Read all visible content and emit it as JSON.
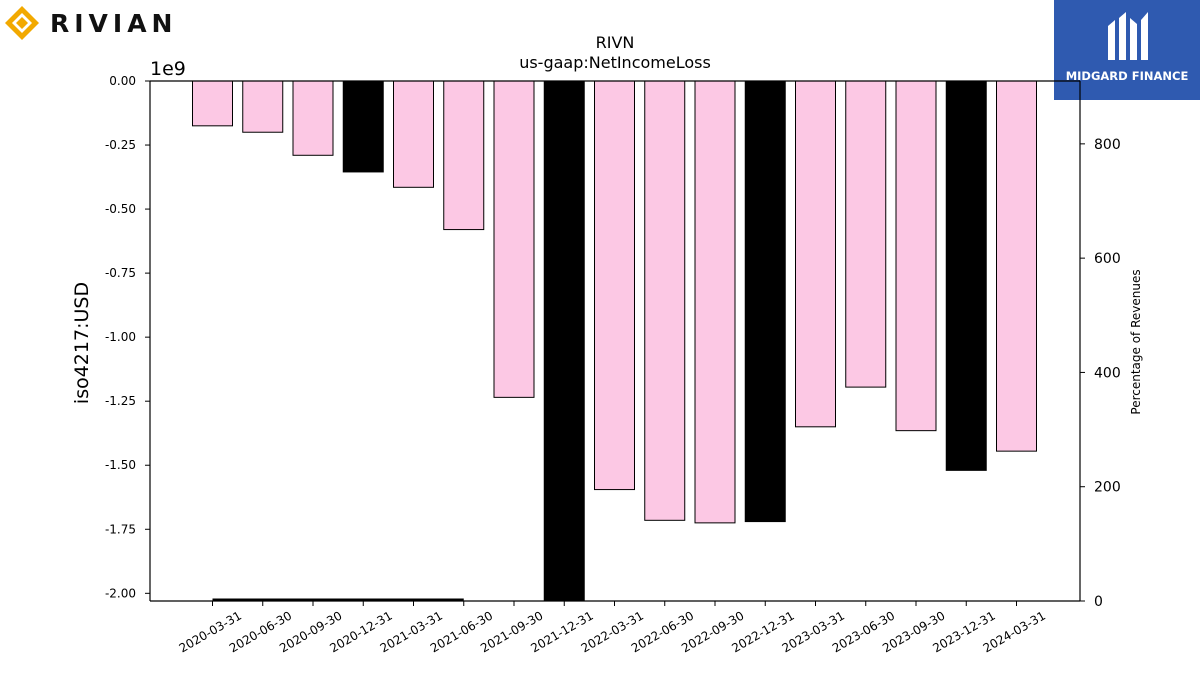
{
  "brand_left": {
    "name": "RIVIAN",
    "icon": "rivian-diamond-icon",
    "color": "#f2a900"
  },
  "brand_right": {
    "name": "MIDGARD FINANCE",
    "icon": "midgard-m-icon",
    "background": "#2f5ab0"
  },
  "chart_data": {
    "type": "bar",
    "title": "RIVN",
    "subtitle": "us-gaap:NetIncomeLoss",
    "ylabel": "iso4217:USD",
    "y_offset_label": "1e9",
    "y2label": "Percentage of Revenues",
    "ylim": [
      -2.03,
      0
    ],
    "y2lim": [
      0,
      910
    ],
    "yticks": [
      "0.00",
      "-0.25",
      "-0.50",
      "-0.75",
      "-1.00",
      "-1.25",
      "-1.50",
      "-1.75",
      "-2.00"
    ],
    "y2ticks": [
      "0",
      "200",
      "400",
      "600",
      "800"
    ],
    "categories": [
      "2020-03-31",
      "2020-06-30",
      "2020-09-30",
      "2020-12-31",
      "2021-03-31",
      "2021-06-30",
      "2021-09-30",
      "2021-12-31",
      "2022-03-31",
      "2022-06-30",
      "2022-09-30",
      "2022-12-31",
      "2023-03-31",
      "2023-06-30",
      "2023-09-30",
      "2023-12-31",
      "2024-03-31"
    ],
    "series": [
      {
        "values": [
          -0.175,
          -0.2,
          -0.29,
          -0.355,
          -0.415,
          -0.58,
          -1.235,
          -2.03,
          -1.595,
          -1.715,
          -1.725,
          -1.72,
          -1.35,
          -1.195,
          -1.365,
          -1.52,
          -1.445
        ]
      },
      {
        "values": [
          null,
          null,
          null,
          null,
          null,
          null,
          null,
          null,
          null,
          null,
          null,
          null,
          null,
          null,
          null,
          null,
          null
        ]
      }
    ],
    "bar_colors": [
      "#fcc8e4",
      "#fcc8e4",
      "#fcc8e4",
      "#000000",
      "#fcc8e4",
      "#fcc8e4",
      "#fcc8e4",
      "#000000",
      "#fcc8e4",
      "#fcc8e4",
      "#fcc8e4",
      "#000000",
      "#fcc8e4",
      "#fcc8e4",
      "#fcc8e4",
      "#000000",
      "#fcc8e4"
    ],
    "grid": false
  }
}
